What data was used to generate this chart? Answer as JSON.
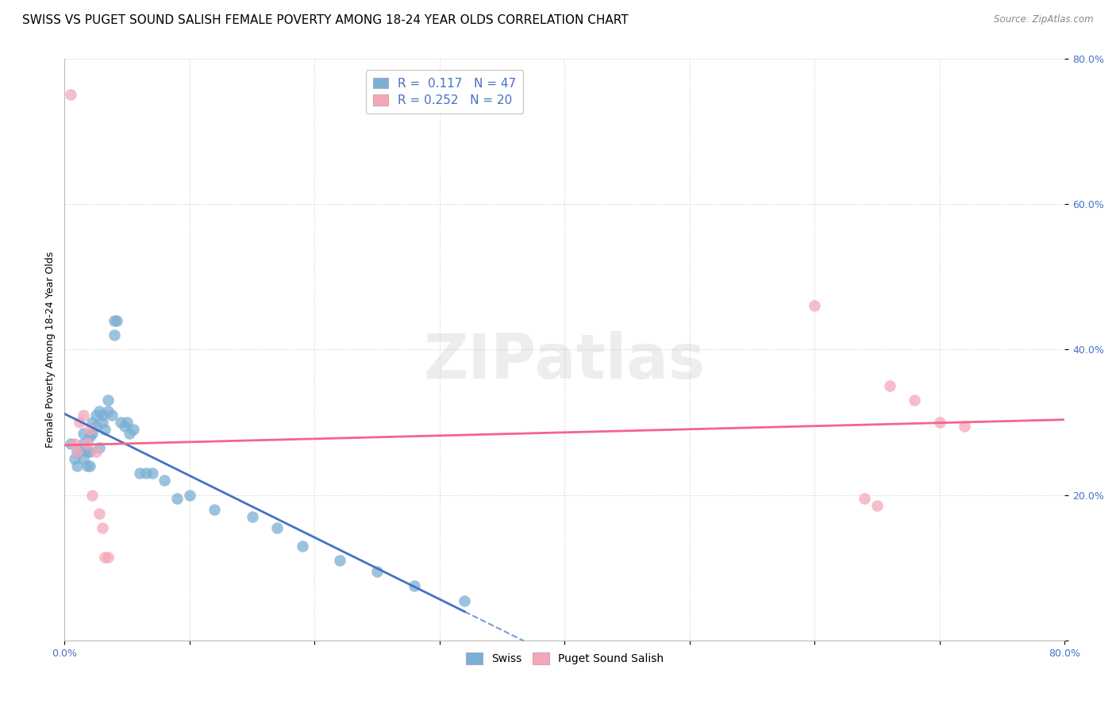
{
  "title": "SWISS VS PUGET SOUND SALISH FEMALE POVERTY AMONG 18-24 YEAR OLDS CORRELATION CHART",
  "source": "Source: ZipAtlas.com",
  "ylabel": "Female Poverty Among 18-24 Year Olds",
  "xlim": [
    0,
    0.8
  ],
  "ylim": [
    0,
    0.8
  ],
  "swiss_r": "0.117",
  "swiss_n": "47",
  "salish_r": "0.252",
  "salish_n": "20",
  "blue_color": "#7BAFD4",
  "pink_color": "#F4A7B9",
  "line_blue": "#4472C4",
  "line_pink": "#F4658A",
  "legend_blue_label": "Swiss",
  "legend_pink_label": "Puget Sound Salish",
  "swiss_x": [
    0.005,
    0.008,
    0.01,
    0.01,
    0.012,
    0.015,
    0.015,
    0.015,
    0.018,
    0.018,
    0.02,
    0.02,
    0.02,
    0.022,
    0.022,
    0.025,
    0.025,
    0.028,
    0.028,
    0.03,
    0.03,
    0.032,
    0.035,
    0.035,
    0.038,
    0.04,
    0.04,
    0.042,
    0.045,
    0.048,
    0.05,
    0.052,
    0.055,
    0.06,
    0.065,
    0.07,
    0.08,
    0.09,
    0.1,
    0.12,
    0.15,
    0.17,
    0.19,
    0.22,
    0.25,
    0.28,
    0.32
  ],
  "swiss_y": [
    0.27,
    0.25,
    0.26,
    0.24,
    0.26,
    0.285,
    0.27,
    0.25,
    0.26,
    0.24,
    0.28,
    0.26,
    0.24,
    0.3,
    0.285,
    0.31,
    0.295,
    0.315,
    0.265,
    0.31,
    0.3,
    0.29,
    0.33,
    0.315,
    0.31,
    0.44,
    0.42,
    0.44,
    0.3,
    0.295,
    0.3,
    0.285,
    0.29,
    0.23,
    0.23,
    0.23,
    0.22,
    0.195,
    0.2,
    0.18,
    0.17,
    0.155,
    0.13,
    0.11,
    0.095,
    0.075,
    0.055
  ],
  "salish_x": [
    0.005,
    0.008,
    0.01,
    0.012,
    0.015,
    0.018,
    0.02,
    0.022,
    0.025,
    0.028,
    0.03,
    0.032,
    0.035,
    0.6,
    0.64,
    0.65,
    0.66,
    0.68,
    0.7,
    0.72
  ],
  "salish_y": [
    0.75,
    0.27,
    0.26,
    0.3,
    0.31,
    0.27,
    0.29,
    0.2,
    0.26,
    0.175,
    0.155,
    0.115,
    0.115,
    0.46,
    0.195,
    0.185,
    0.35,
    0.33,
    0.3,
    0.295
  ],
  "background_color": "#FFFFFF",
  "grid_color": "#DDDDDD",
  "title_fontsize": 11,
  "axis_label_fontsize": 9,
  "tick_fontsize": 9,
  "tick_color": "#4472C4"
}
